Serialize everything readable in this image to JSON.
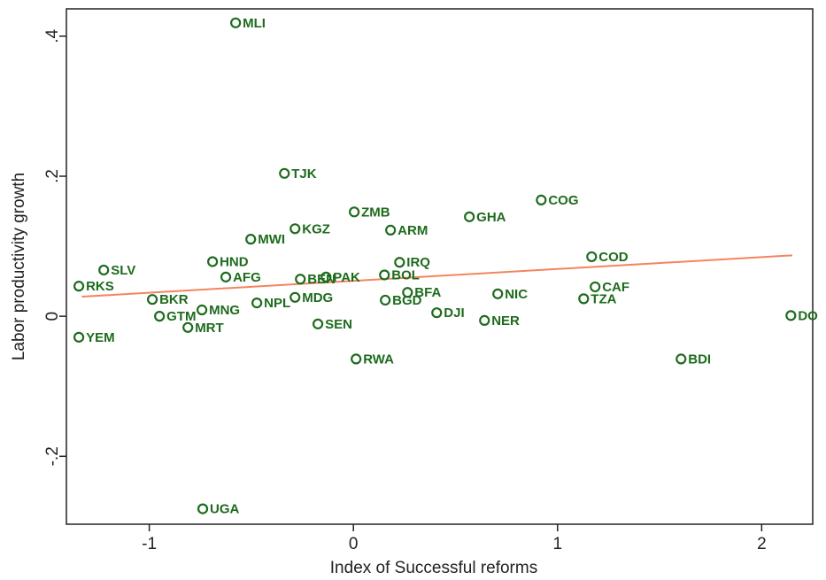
{
  "chart_data": {
    "type": "scatter",
    "x_label": "Index of Successful reforms",
    "y_label": "Labor productivity growth",
    "labels": [
      "MLI",
      "TJK",
      "ZMB",
      "COG",
      "GHA",
      "KGZ",
      "ARM",
      "MWI",
      "HND",
      "SLV",
      "COD",
      "IRQ",
      "AFG",
      "BOL",
      "PAK",
      "BEN",
      "RKS",
      "CAF",
      "BFA",
      "NIC",
      "MDG",
      "TZA",
      "BGD",
      "BKR",
      "NPL",
      "MNG",
      "DJI",
      "GTM",
      "NER",
      "DO",
      "SEN",
      "MRT",
      "YEM",
      "RWA",
      "BDI",
      "UGA"
    ],
    "x": [
      -0.577,
      -0.338,
      0.004,
      0.92,
      0.568,
      -0.286,
      0.182,
      -0.503,
      -0.69,
      -1.223,
      1.167,
      0.226,
      -0.625,
      0.152,
      -0.134,
      -0.26,
      -1.345,
      1.184,
      0.265,
      0.707,
      -0.286,
      1.128,
      0.156,
      -0.985,
      -0.473,
      -0.742,
      0.408,
      -0.95,
      0.642,
      2.143,
      -0.174,
      -0.811,
      -1.345,
      0.013,
      1.605,
      -0.738
    ],
    "values": [
      0.419,
      0.204,
      0.149,
      0.166,
      0.142,
      0.125,
      0.123,
      0.11,
      0.078,
      0.066,
      0.085,
      0.077,
      0.056,
      0.059,
      0.056,
      0.053,
      0.043,
      0.042,
      0.034,
      0.032,
      0.027,
      0.025,
      0.023,
      0.024,
      0.019,
      0.009,
      0.005,
      0.0,
      -0.006,
      0.001,
      -0.011,
      -0.016,
      -0.03,
      -0.061,
      -0.061,
      -0.275
    ],
    "color": "#1d6b1d",
    "fit": {
      "x": [
        -1.33,
        2.15
      ],
      "values": [
        0.028,
        0.087
      ],
      "color": "#f4845f"
    },
    "xlim": [
      -1.406,
      2.25
    ],
    "ylim": [
      -0.297,
      0.439
    ],
    "xticks": [
      -1,
      0,
      1,
      2
    ],
    "yticks": [
      {
        "value": -0.2,
        "label": "-.2"
      },
      0,
      {
        "value": 0.2,
        "label": ".2"
      },
      {
        "value": 0.4,
        "label": ".4"
      }
    ],
    "grid": false
  }
}
